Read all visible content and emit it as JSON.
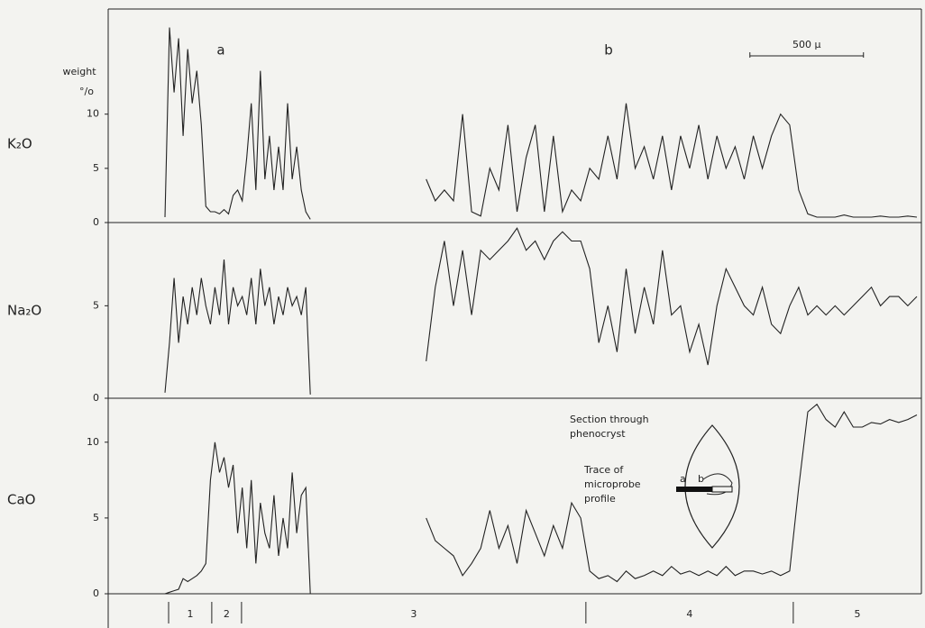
{
  "chart_data": [
    {
      "type": "line",
      "name": "K₂O",
      "color": "#1a1a1a",
      "x": [
        250,
        270,
        290,
        310,
        330,
        350,
        370,
        390,
        410,
        430,
        450,
        470,
        490,
        510,
        530,
        550,
        570,
        590,
        610,
        630,
        650,
        670,
        690,
        710,
        730,
        750,
        770,
        790,
        810,
        830,
        850,
        870,
        890,
        1150,
        1400,
        1440,
        1480,
        1520,
        1560,
        1600,
        1640,
        1680,
        1720,
        1760,
        1800,
        1840,
        1880,
        1920,
        1960,
        2000,
        2040,
        2080,
        2120,
        2160,
        2200,
        2240,
        2280,
        2320,
        2360,
        2400,
        2440,
        2480,
        2520,
        2560,
        2600,
        2640,
        2680,
        2720,
        2760,
        2800,
        2840,
        2880,
        2920,
        2960,
        3000,
        3040,
        3080,
        3120,
        3160,
        3200,
        3240,
        3280,
        3320,
        3360,
        3400,
        3440,
        3480,
        3520,
        3560
      ],
      "values": [
        0.5,
        18,
        12,
        17,
        8,
        16,
        11,
        14,
        9,
        1.5,
        1,
        1,
        0.8,
        1.2,
        0.8,
        2.5,
        3,
        2,
        6,
        11,
        3,
        14,
        4,
        8,
        3,
        7,
        3,
        11,
        4,
        7,
        3,
        1,
        0.3,
        null,
        4,
        2,
        3,
        2,
        10,
        1,
        0.6,
        5,
        3,
        9,
        1,
        6,
        9,
        1,
        8,
        1,
        3,
        2,
        5,
        4,
        8,
        4,
        11,
        5,
        7,
        4,
        8,
        3,
        8,
        5,
        9,
        4,
        8,
        5,
        7,
        4,
        8,
        5,
        8,
        10,
        9,
        3,
        0.8,
        0.5,
        0.5,
        0.5,
        0.7,
        0.5,
        0.5,
        0.5,
        0.6,
        0.5,
        0.5,
        0.6,
        0.5
      ],
      "ylim": [
        0,
        19.7
      ],
      "yticks": [
        0,
        5,
        10
      ],
      "xlim": [
        0,
        3580
      ]
    },
    {
      "type": "line",
      "name": "Na₂O",
      "color": "#1a1a1a",
      "x": [
        250,
        270,
        290,
        310,
        330,
        350,
        370,
        390,
        410,
        430,
        450,
        470,
        490,
        510,
        530,
        550,
        570,
        590,
        610,
        630,
        650,
        670,
        690,
        710,
        730,
        750,
        770,
        790,
        810,
        830,
        850,
        870,
        890,
        1150,
        1400,
        1440,
        1480,
        1520,
        1560,
        1600,
        1640,
        1680,
        1720,
        1760,
        1800,
        1840,
        1880,
        1920,
        1960,
        2000,
        2040,
        2080,
        2120,
        2160,
        2200,
        2240,
        2280,
        2320,
        2360,
        2400,
        2440,
        2480,
        2520,
        2560,
        2600,
        2640,
        2680,
        2720,
        2760,
        2800,
        2840,
        2880,
        2920,
        2960,
        3000,
        3040,
        3080,
        3120,
        3160,
        3200,
        3240,
        3280,
        3320,
        3360,
        3400,
        3440,
        3480,
        3520,
        3560
      ],
      "values": [
        0.3,
        3,
        6.5,
        3,
        5.5,
        4,
        6,
        4.5,
        6.5,
        5,
        4,
        6,
        4.5,
        7.5,
        4,
        6,
        5,
        5.5,
        4.5,
        6.5,
        4,
        7,
        5,
        6,
        4,
        5.5,
        4.5,
        6,
        5,
        5.5,
        4.5,
        6,
        0.2,
        null,
        2,
        6,
        8.5,
        5,
        8,
        4.5,
        8,
        7.5,
        8,
        8.5,
        9.2,
        8,
        8.5,
        7.5,
        8.5,
        9,
        8.5,
        8.5,
        7,
        3,
        5,
        2.5,
        7,
        3.5,
        6,
        4,
        8,
        4.5,
        5,
        2.5,
        4,
        1.8,
        5,
        7,
        6,
        5,
        4.5,
        6,
        4,
        3.5,
        5,
        6,
        4.5,
        5,
        4.5,
        5,
        4.5,
        5,
        5.5,
        6,
        5,
        5.5,
        5.5,
        5,
        5.5
      ],
      "ylim": [
        0,
        9.5
      ],
      "yticks": [
        0,
        5
      ],
      "xlim": [
        0,
        3580
      ]
    },
    {
      "type": "line",
      "name": "CaO",
      "color": "#1a1a1a",
      "x": [
        250,
        270,
        290,
        310,
        330,
        350,
        370,
        390,
        410,
        430,
        450,
        470,
        490,
        510,
        530,
        550,
        570,
        590,
        610,
        630,
        650,
        670,
        690,
        710,
        730,
        750,
        770,
        790,
        810,
        830,
        850,
        870,
        890,
        1150,
        1400,
        1440,
        1480,
        1520,
        1560,
        1600,
        1640,
        1680,
        1720,
        1760,
        1800,
        1840,
        1880,
        1920,
        1960,
        2000,
        2040,
        2080,
        2120,
        2160,
        2200,
        2240,
        2280,
        2320,
        2360,
        2400,
        2440,
        2480,
        2520,
        2560,
        2600,
        2640,
        2680,
        2720,
        2760,
        2800,
        2840,
        2880,
        2920,
        2960,
        3000,
        3040,
        3080,
        3120,
        3160,
        3200,
        3240,
        3280,
        3320,
        3360,
        3400,
        3440,
        3480,
        3520,
        3560
      ],
      "values": [
        0,
        0.1,
        0.2,
        0.3,
        1,
        0.8,
        1,
        1.2,
        1.5,
        2,
        7.5,
        10,
        8,
        9,
        7,
        8.5,
        4,
        7,
        3,
        7.5,
        2,
        6,
        4,
        3,
        6.5,
        2.5,
        5,
        3,
        8,
        4,
        6.5,
        7,
        0,
        null,
        5,
        3.5,
        3,
        2.5,
        1.2,
        2,
        3,
        5.5,
        3,
        4.5,
        2,
        5.5,
        4,
        2.5,
        4.5,
        3,
        6,
        5,
        1.5,
        1,
        1.2,
        0.8,
        1.5,
        1,
        1.2,
        1.5,
        1.2,
        1.8,
        1.3,
        1.5,
        1.2,
        1.5,
        1.2,
        1.8,
        1.2,
        1.5,
        1.5,
        1.3,
        1.5,
        1.2,
        1.5,
        7,
        12,
        12.5,
        11.5,
        11,
        12,
        11,
        11,
        11.3,
        11.2,
        11.5,
        11.3,
        11.5,
        11.8
      ],
      "ylim": [
        0,
        12.9
      ],
      "yticks": [
        0,
        5,
        10
      ],
      "xlim": [
        0,
        3580
      ]
    }
  ],
  "figure": {
    "label_a": "a",
    "label_b": "b",
    "unit_top": "weight",
    "unit_bottom": "°/o",
    "scale_bar": {
      "value": 500,
      "label": "500 μ"
    },
    "zone_boundaries": [
      266,
      456,
      587,
      2103,
      3016
    ],
    "zone_labels": [
      "1",
      "2",
      "3",
      "4",
      "5"
    ],
    "inset_title": [
      "Section through",
      "phenocryst"
    ],
    "inset_trace": [
      "Trace of",
      "microprobe",
      "profile"
    ],
    "inset_a": "a",
    "inset_b": "b"
  }
}
